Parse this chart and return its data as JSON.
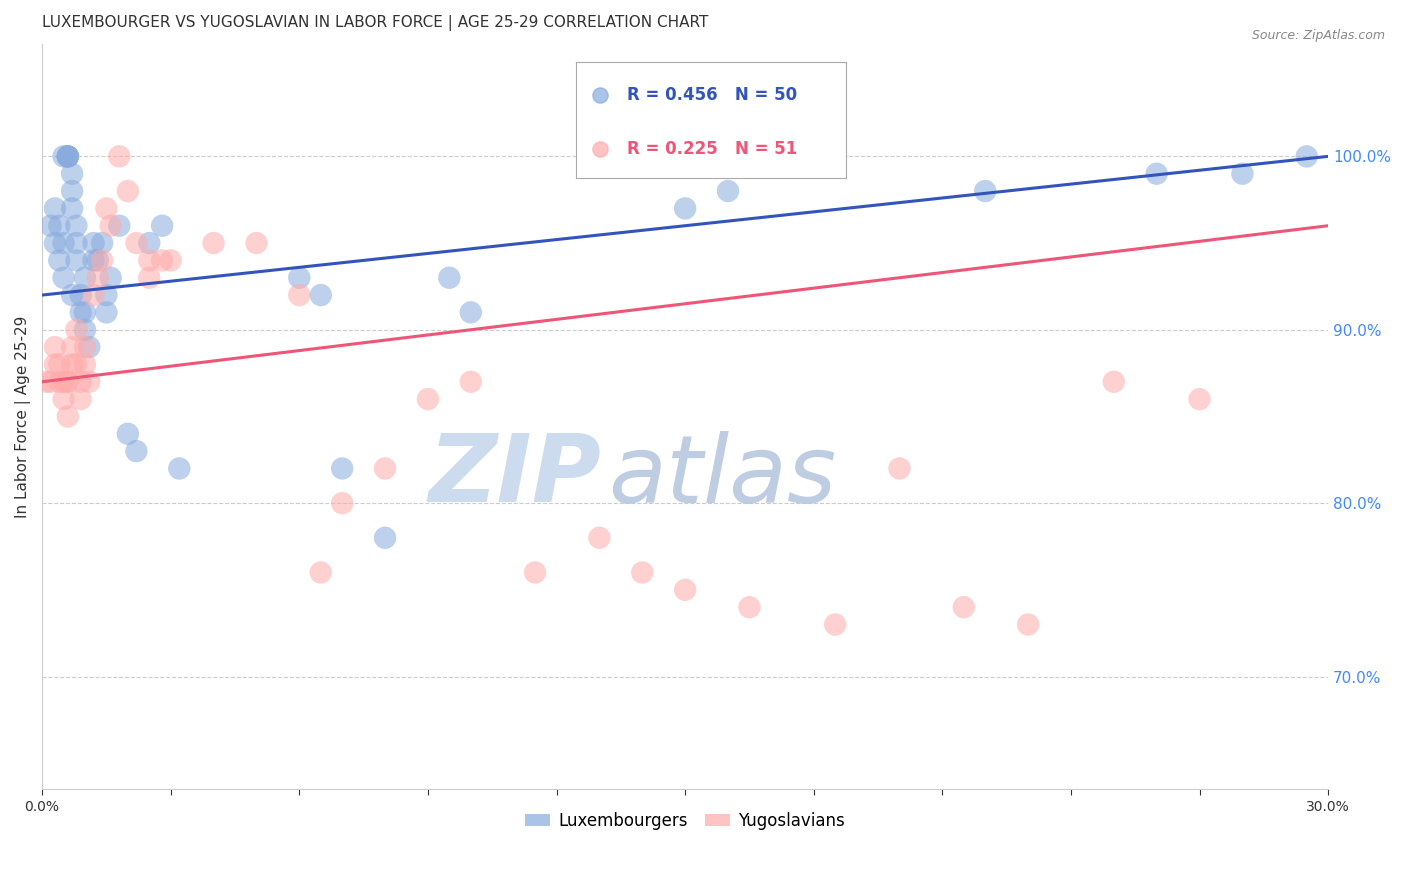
{
  "title": "LUXEMBOURGER VS YUGOSLAVIAN IN LABOR FORCE | AGE 25-29 CORRELATION CHART",
  "source": "Source: ZipAtlas.com",
  "ylabel": "In Labor Force | Age 25-29",
  "xlim": [
    0.0,
    0.3
  ],
  "ylim": [
    0.635,
    1.065
  ],
  "xticks": [
    0.0,
    0.03,
    0.06,
    0.09,
    0.12,
    0.15,
    0.18,
    0.21,
    0.24,
    0.27,
    0.3
  ],
  "xtick_labels": [
    "0.0%",
    "",
    "",
    "",
    "",
    "",
    "",
    "",
    "",
    "",
    "30.0%"
  ],
  "yticks_right": [
    0.7,
    0.8,
    0.9,
    1.0
  ],
  "ytick_labels_right": [
    "70.0%",
    "80.0%",
    "90.0%",
    "100.0%"
  ],
  "blue_color": "#88AADD",
  "pink_color": "#FFAAAA",
  "blue_line_color": "#3355BB",
  "pink_line_color": "#EE5577",
  "blue_scatter_x": [
    0.002,
    0.003,
    0.003,
    0.004,
    0.004,
    0.005,
    0.005,
    0.005,
    0.006,
    0.006,
    0.006,
    0.006,
    0.007,
    0.007,
    0.007,
    0.007,
    0.008,
    0.008,
    0.008,
    0.009,
    0.009,
    0.01,
    0.01,
    0.01,
    0.011,
    0.012,
    0.012,
    0.013,
    0.014,
    0.015,
    0.015,
    0.016,
    0.018,
    0.02,
    0.022,
    0.025,
    0.028,
    0.032,
    0.06,
    0.065,
    0.07,
    0.08,
    0.095,
    0.1,
    0.15,
    0.16,
    0.22,
    0.26,
    0.28,
    0.295
  ],
  "blue_scatter_y": [
    0.96,
    0.95,
    0.97,
    0.94,
    0.96,
    0.93,
    0.95,
    1.0,
    1.0,
    1.0,
    1.0,
    1.0,
    0.97,
    0.98,
    0.99,
    0.92,
    0.96,
    0.95,
    0.94,
    0.92,
    0.91,
    0.93,
    0.91,
    0.9,
    0.89,
    0.95,
    0.94,
    0.94,
    0.95,
    0.92,
    0.91,
    0.93,
    0.96,
    0.84,
    0.83,
    0.95,
    0.96,
    0.82,
    0.93,
    0.92,
    0.82,
    0.78,
    0.93,
    0.91,
    0.97,
    0.98,
    0.98,
    0.99,
    0.99,
    1.0
  ],
  "pink_scatter_x": [
    0.001,
    0.002,
    0.003,
    0.003,
    0.004,
    0.004,
    0.005,
    0.005,
    0.006,
    0.006,
    0.006,
    0.007,
    0.007,
    0.008,
    0.008,
    0.009,
    0.009,
    0.01,
    0.01,
    0.011,
    0.012,
    0.013,
    0.014,
    0.015,
    0.016,
    0.018,
    0.02,
    0.022,
    0.025,
    0.025,
    0.028,
    0.03,
    0.04,
    0.05,
    0.06,
    0.065,
    0.07,
    0.08,
    0.09,
    0.1,
    0.115,
    0.13,
    0.14,
    0.15,
    0.165,
    0.185,
    0.2,
    0.215,
    0.23,
    0.25,
    0.27
  ],
  "pink_scatter_y": [
    0.87,
    0.87,
    0.89,
    0.88,
    0.87,
    0.88,
    0.87,
    0.86,
    0.87,
    0.85,
    0.87,
    0.88,
    0.89,
    0.9,
    0.88,
    0.87,
    0.86,
    0.88,
    0.89,
    0.87,
    0.92,
    0.93,
    0.94,
    0.97,
    0.96,
    1.0,
    0.98,
    0.95,
    0.94,
    0.93,
    0.94,
    0.94,
    0.95,
    0.95,
    0.92,
    0.76,
    0.8,
    0.82,
    0.86,
    0.87,
    0.76,
    0.78,
    0.76,
    0.75,
    0.74,
    0.73,
    0.82,
    0.74,
    0.73,
    0.87,
    0.86
  ],
  "blue_line_x0": 0.0,
  "blue_line_x1": 0.3,
  "blue_line_y0": 0.92,
  "blue_line_y1": 1.0,
  "pink_line_x0": 0.0,
  "pink_line_x1": 0.3,
  "pink_line_y0": 0.87,
  "pink_line_y1": 0.96,
  "watermark_zip": "ZIP",
  "watermark_atlas": "atlas",
  "background_color": "#ffffff",
  "grid_color": "#cccccc",
  "axis_label_color": "#333333",
  "right_axis_color": "#4488ff",
  "title_fontsize": 11,
  "axis_label_fontsize": 11,
  "tick_label_fontsize": 10,
  "legend_fontsize": 12
}
